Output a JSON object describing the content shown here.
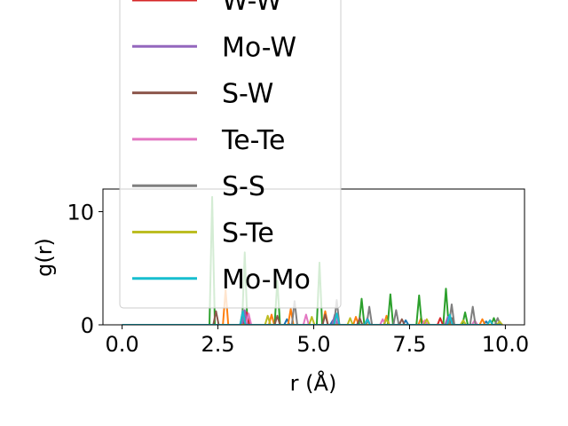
{
  "chart_data": {
    "type": "line",
    "title": "",
    "xlabel": "r (Å)",
    "ylabel": "g(r)",
    "xlim": [
      -0.5,
      10.5
    ],
    "ylim": [
      0,
      12
    ],
    "xticks": [
      0.0,
      2.5,
      5.0,
      7.5,
      10.0
    ],
    "xtick_labels": [
      "0.0",
      "2.5",
      "5.0",
      "7.5",
      "10.0"
    ],
    "yticks": [
      0,
      10
    ],
    "ytick_labels": [
      "0",
      "10"
    ],
    "grid": false,
    "legend_position": "upper-left",
    "series": [
      {
        "name": "",
        "color": "#1f77b4",
        "visible_in_legend": false,
        "peaks": [
          [
            3.2,
            0.8
          ],
          [
            4.3,
            0.5
          ],
          [
            5.5,
            0.4
          ],
          [
            6.4,
            0.5
          ],
          [
            7.4,
            0.4
          ],
          [
            8.6,
            0.5
          ],
          [
            9.5,
            0.3
          ]
        ]
      },
      {
        "name": "",
        "color": "#ff7f0e",
        "visible_in_legend": false,
        "peaks": [
          [
            2.7,
            3.1
          ],
          [
            3.9,
            0.9
          ],
          [
            4.4,
            1.4
          ],
          [
            5.3,
            1.2
          ],
          [
            6.1,
            0.7
          ],
          [
            6.9,
            0.8
          ],
          [
            7.8,
            0.6
          ],
          [
            8.5,
            0.7
          ],
          [
            9.4,
            0.5
          ]
        ]
      },
      {
        "name": "",
        "color": "#2ca02c",
        "visible_in_legend": false,
        "peaks": [
          [
            2.35,
            11.3
          ],
          [
            3.2,
            6.4
          ],
          [
            4.05,
            3.9
          ],
          [
            5.15,
            5.5
          ],
          [
            6.25,
            2.3
          ],
          [
            7.0,
            2.7
          ],
          [
            7.75,
            2.6
          ],
          [
            8.45,
            3.2
          ],
          [
            8.95,
            1.1
          ],
          [
            9.7,
            0.6
          ]
        ]
      },
      {
        "name": "W-W",
        "color": "#d62728",
        "peaks": [
          [
            3.25,
            1.1
          ],
          [
            5.6,
            0.7
          ],
          [
            6.4,
            0.5
          ],
          [
            8.3,
            0.6
          ],
          [
            9.6,
            0.4
          ]
        ]
      },
      {
        "name": "Mo-W",
        "color": "#9467bd",
        "peaks": [
          [
            3.2,
            1.3
          ],
          [
            5.55,
            0.9
          ],
          [
            6.4,
            0.6
          ],
          [
            8.5,
            0.7
          ]
        ]
      },
      {
        "name": "S-W",
        "color": "#8c564b",
        "peaks": [
          [
            2.45,
            1.2
          ],
          [
            4.05,
            0.8
          ],
          [
            5.3,
            0.9
          ],
          [
            6.2,
            0.6
          ],
          [
            7.3,
            0.5
          ],
          [
            8.6,
            0.6
          ]
        ]
      },
      {
        "name": "Te-Te",
        "color": "#e377c2",
        "peaks": [
          [
            3.3,
            1.0
          ],
          [
            4.8,
            0.9
          ],
          [
            5.6,
            0.6
          ],
          [
            6.8,
            0.5
          ],
          [
            7.9,
            0.4
          ],
          [
            9.2,
            0.4
          ]
        ]
      },
      {
        "name": "S-S",
        "color": "#7f7f7f",
        "peaks": [
          [
            3.15,
            1.3
          ],
          [
            4.5,
            2.1
          ],
          [
            5.6,
            2.2
          ],
          [
            6.45,
            1.6
          ],
          [
            7.15,
            1.3
          ],
          [
            8.6,
            1.8
          ],
          [
            9.15,
            1.6
          ],
          [
            9.8,
            0.6
          ]
        ]
      },
      {
        "name": "S-Te",
        "color": "#bcbd22",
        "peaks": [
          [
            3.8,
            0.8
          ],
          [
            4.95,
            0.7
          ],
          [
            5.95,
            0.6
          ],
          [
            6.9,
            0.5
          ],
          [
            7.95,
            0.5
          ],
          [
            8.9,
            0.4
          ],
          [
            9.85,
            0.3
          ]
        ]
      },
      {
        "name": "Mo-Mo",
        "color": "#17becf",
        "peaks": [
          [
            3.15,
            1.2
          ],
          [
            5.6,
            1.0
          ],
          [
            6.4,
            0.5
          ],
          [
            8.55,
            0.9
          ],
          [
            9.6,
            0.4
          ]
        ]
      }
    ]
  }
}
